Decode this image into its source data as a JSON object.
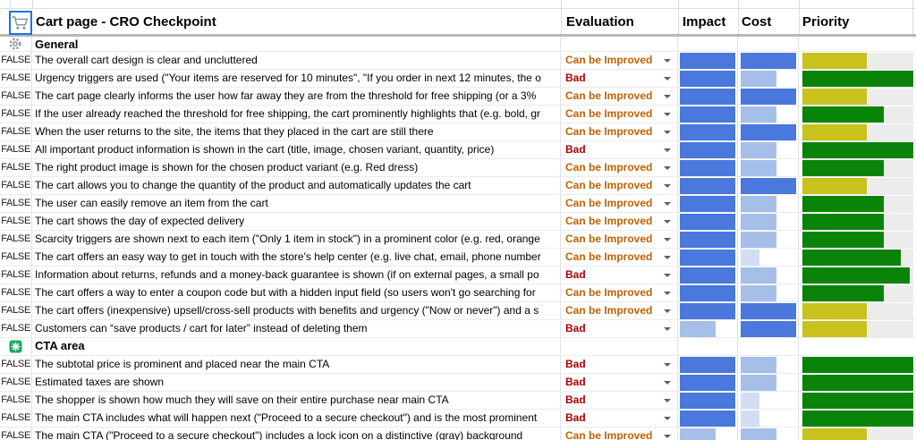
{
  "header": {
    "title": "Cart page - CRO Checkpoint",
    "columns": [
      "Evaluation",
      "Impact",
      "Cost",
      "Priority"
    ]
  },
  "colors": {
    "bars": {
      "solid": "#4a78dc",
      "light": "#a5bfe9",
      "xlight": "#d3def5",
      "yellow": "#c9c21c",
      "green": "#0a8408"
    },
    "evaluation": {
      "Can be Improved": "#bf6104",
      "Bad": "#a80000"
    },
    "track": "#ececec",
    "selection": "#1a73e8"
  },
  "sections": [
    {
      "name": "General",
      "icon": "gear-icon",
      "rows": [
        {
          "checkbox": "FALSE",
          "text": "The overall cart design is clear and uncluttered",
          "evaluation": "Can be Improved",
          "impact": {
            "shade": "solid",
            "fill": 1.0
          },
          "cost": {
            "shade": "solid",
            "fill": 1.0
          },
          "priority": {
            "color": "yellow",
            "fill": 0.58
          }
        },
        {
          "checkbox": "FALSE",
          "text": "Urgency triggers are used (\"Your items are reserved for 10 minutes\", \"If you order in next 12 minutes, the o",
          "evaluation": "Bad",
          "impact": {
            "shade": "solid",
            "fill": 1.0
          },
          "cost": {
            "shade": "light",
            "fill": 0.65
          },
          "priority": {
            "color": "green",
            "fill": 1.0
          }
        },
        {
          "checkbox": "FALSE",
          "text": "The cart page clearly informs the user how far away they are from the threshold for free shipping (or a 3% ",
          "evaluation": "Can be Improved",
          "impact": {
            "shade": "solid",
            "fill": 1.0
          },
          "cost": {
            "shade": "solid",
            "fill": 1.0
          },
          "priority": {
            "color": "yellow",
            "fill": 0.58
          }
        },
        {
          "checkbox": "FALSE",
          "text": "If the user already reached the threshold for free shipping, the cart prominently highlights that (e.g. bold, gr",
          "evaluation": "Can be Improved",
          "impact": {
            "shade": "solid",
            "fill": 1.0
          },
          "cost": {
            "shade": "light",
            "fill": 0.65
          },
          "priority": {
            "color": "green",
            "fill": 0.73
          }
        },
        {
          "checkbox": "FALSE",
          "text": "When the user returns to the site, the items that they placed in the cart are still there",
          "evaluation": "Can be Improved",
          "impact": {
            "shade": "solid",
            "fill": 1.0
          },
          "cost": {
            "shade": "solid",
            "fill": 1.0
          },
          "priority": {
            "color": "yellow",
            "fill": 0.58
          }
        },
        {
          "checkbox": "FALSE",
          "text": "All important product information is shown in the cart (title, image, chosen variant, quantity, price)",
          "evaluation": "Bad",
          "impact": {
            "shade": "solid",
            "fill": 1.0
          },
          "cost": {
            "shade": "light",
            "fill": 0.65
          },
          "priority": {
            "color": "green",
            "fill": 1.0
          }
        },
        {
          "checkbox": "FALSE",
          "text": "The right product image is shown for the chosen product variant (e.g. Red dress)",
          "evaluation": "Can be Improved",
          "impact": {
            "shade": "solid",
            "fill": 1.0
          },
          "cost": {
            "shade": "light",
            "fill": 0.65
          },
          "priority": {
            "color": "green",
            "fill": 0.73
          }
        },
        {
          "checkbox": "FALSE",
          "text": "The cart allows you to change the quantity of the product and automatically updates the cart",
          "evaluation": "Can be Improved",
          "impact": {
            "shade": "solid",
            "fill": 1.0
          },
          "cost": {
            "shade": "solid",
            "fill": 1.0
          },
          "priority": {
            "color": "yellow",
            "fill": 0.58
          }
        },
        {
          "checkbox": "FALSE",
          "text": "The user can easily remove an item from the cart",
          "evaluation": "Can be Improved",
          "impact": {
            "shade": "solid",
            "fill": 1.0
          },
          "cost": {
            "shade": "light",
            "fill": 0.65
          },
          "priority": {
            "color": "green",
            "fill": 0.73
          }
        },
        {
          "checkbox": "FALSE",
          "text": "The cart shows the day of expected delivery",
          "evaluation": "Can be Improved",
          "impact": {
            "shade": "solid",
            "fill": 1.0
          },
          "cost": {
            "shade": "light",
            "fill": 0.65
          },
          "priority": {
            "color": "green",
            "fill": 0.73
          }
        },
        {
          "checkbox": "FALSE",
          "text": "Scarcity triggers are shown next to each item (\"Only 1 item in stock\") in a prominent color (e.g. red, orange",
          "evaluation": "Can be Improved",
          "impact": {
            "shade": "solid",
            "fill": 1.0
          },
          "cost": {
            "shade": "light",
            "fill": 0.65
          },
          "priority": {
            "color": "green",
            "fill": 0.73
          }
        },
        {
          "checkbox": "FALSE",
          "text": "The cart offers an easy way to get in touch with the store's help center (e.g. live chat, email, phone number",
          "evaluation": "Can be Improved",
          "impact": {
            "shade": "solid",
            "fill": 1.0
          },
          "cost": {
            "shade": "xlight",
            "fill": 0.34
          },
          "priority": {
            "color": "green",
            "fill": 0.89
          }
        },
        {
          "checkbox": "FALSE",
          "text": "Information about returns, refunds and a money-back guarantee is shown (if on external pages, a small po",
          "evaluation": "Bad",
          "impact": {
            "shade": "solid",
            "fill": 1.0
          },
          "cost": {
            "shade": "light",
            "fill": 0.65
          },
          "priority": {
            "color": "green",
            "fill": 0.97
          }
        },
        {
          "checkbox": "FALSE",
          "text": "The cart offers a way to enter a coupon code but with a hidden input field (so users won't go searching for ",
          "evaluation": "Can be Improved",
          "impact": {
            "shade": "solid",
            "fill": 1.0
          },
          "cost": {
            "shade": "light",
            "fill": 0.65
          },
          "priority": {
            "color": "green",
            "fill": 0.73
          }
        },
        {
          "checkbox": "FALSE",
          "text": "The cart offers (inexpensive) upsell/cross-sell products with benefits and urgency (\"Now or never\") and a s",
          "evaluation": "Can be Improved",
          "impact": {
            "shade": "solid",
            "fill": 1.0
          },
          "cost": {
            "shade": "solid",
            "fill": 1.0
          },
          "priority": {
            "color": "yellow",
            "fill": 0.58
          }
        },
        {
          "checkbox": "FALSE",
          "text": "Customers can “save products / cart for later” instead of deleting them",
          "evaluation": "Bad",
          "impact": {
            "shade": "light",
            "fill": 0.65
          },
          "cost": {
            "shade": "solid",
            "fill": 1.0
          },
          "priority": {
            "color": "yellow",
            "fill": 0.58
          }
        }
      ]
    },
    {
      "name": "CTA area",
      "icon": "asterisk-icon",
      "rows": [
        {
          "checkbox": "FALSE",
          "text": "The subtotal price is prominent and placed near the main CTA",
          "evaluation": "Bad",
          "impact": {
            "shade": "solid",
            "fill": 1.0
          },
          "cost": {
            "shade": "light",
            "fill": 0.65
          },
          "priority": {
            "color": "green",
            "fill": 1.0
          }
        },
        {
          "checkbox": "FALSE",
          "text": "Estimated taxes are shown",
          "evaluation": "Bad",
          "impact": {
            "shade": "solid",
            "fill": 1.0
          },
          "cost": {
            "shade": "light",
            "fill": 0.65
          },
          "priority": {
            "color": "green",
            "fill": 1.0
          }
        },
        {
          "checkbox": "FALSE",
          "text": "The shopper is shown how much they will save on their entire purchase near main CTA",
          "evaluation": "Bad",
          "impact": {
            "shade": "solid",
            "fill": 1.0
          },
          "cost": {
            "shade": "xlight",
            "fill": 0.34
          },
          "priority": {
            "color": "green",
            "fill": 1.0
          }
        },
        {
          "checkbox": "FALSE",
          "text": "The main CTA includes what will happen next (\"Proceed to a secure checkout\") and is the most prominent",
          "evaluation": "Bad",
          "impact": {
            "shade": "solid",
            "fill": 1.0
          },
          "cost": {
            "shade": "xlight",
            "fill": 0.34
          },
          "priority": {
            "color": "green",
            "fill": 1.0
          }
        },
        {
          "checkbox": "FALSE",
          "text": "The main CTA (\"Proceed to a secure checkout\") includes a lock icon on a distinctive (gray) background",
          "evaluation": "Can be Improved",
          "impact": {
            "shade": "light",
            "fill": 0.65
          },
          "cost": {
            "shade": "light",
            "fill": 0.65
          },
          "priority": {
            "color": "yellow",
            "fill": 0.58
          }
        }
      ]
    }
  ]
}
